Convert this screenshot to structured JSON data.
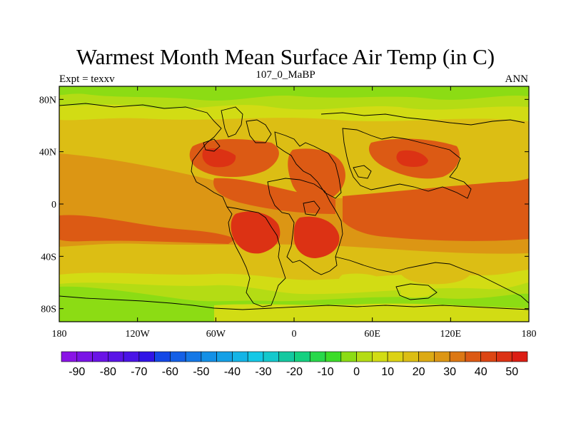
{
  "title": "Warmest Month Mean Surface Air Temp (in C)",
  "left_label": "Expt = texxv",
  "center_label": "107_0_MaBP",
  "right_label": "ANN",
  "map": {
    "projection": "cylindrical-equidistant",
    "lon_range": [
      -180,
      180
    ],
    "lat_range": [
      -90,
      90
    ],
    "lon_ticks": [
      {
        "value": -180,
        "label": "180"
      },
      {
        "value": -120,
        "label": "120W"
      },
      {
        "value": -60,
        "label": "60W"
      },
      {
        "value": 0,
        "label": "0"
      },
      {
        "value": 60,
        "label": "60E"
      },
      {
        "value": 120,
        "label": "120E"
      },
      {
        "value": 180,
        "label": "180"
      }
    ],
    "lat_ticks": [
      {
        "value": 80,
        "label": "80N"
      },
      {
        "value": 40,
        "label": "40N"
      },
      {
        "value": 0,
        "label": "0"
      },
      {
        "value": -40,
        "label": "40S"
      },
      {
        "value": -80,
        "label": "80S"
      }
    ]
  },
  "colorbar": {
    "colors": [
      "#8a14e6",
      "#7a14e6",
      "#6a14e6",
      "#5a14e6",
      "#4a14e6",
      "#3114e6",
      "#1448e6",
      "#1460e6",
      "#1478e6",
      "#1490e6",
      "#14a0e6",
      "#14b4e6",
      "#14c8e6",
      "#14c8cc",
      "#14c8a0",
      "#14d080",
      "#28d84a",
      "#3cdc28",
      "#8cdc14",
      "#b4dc14",
      "#d2dc14",
      "#dcd214",
      "#dcbe14",
      "#dcaa14",
      "#dc9614",
      "#dc7814",
      "#dc5a14",
      "#dc4614",
      "#dc3214",
      "#dc1e14"
    ],
    "labels": [
      "-90",
      "-80",
      "-70",
      "-60",
      "-50",
      "-40",
      "-30",
      "-20",
      "-10",
      "0",
      "10",
      "20",
      "30",
      "40",
      "50"
    ]
  },
  "palette": {
    "cold": "#8cdc14",
    "cool": "#b4dc14",
    "mild": "#d2dc14",
    "warm": "#dcbe14",
    "warmer": "#dc9614",
    "hot": "#dc5a14",
    "hottest": "#dc3214"
  }
}
